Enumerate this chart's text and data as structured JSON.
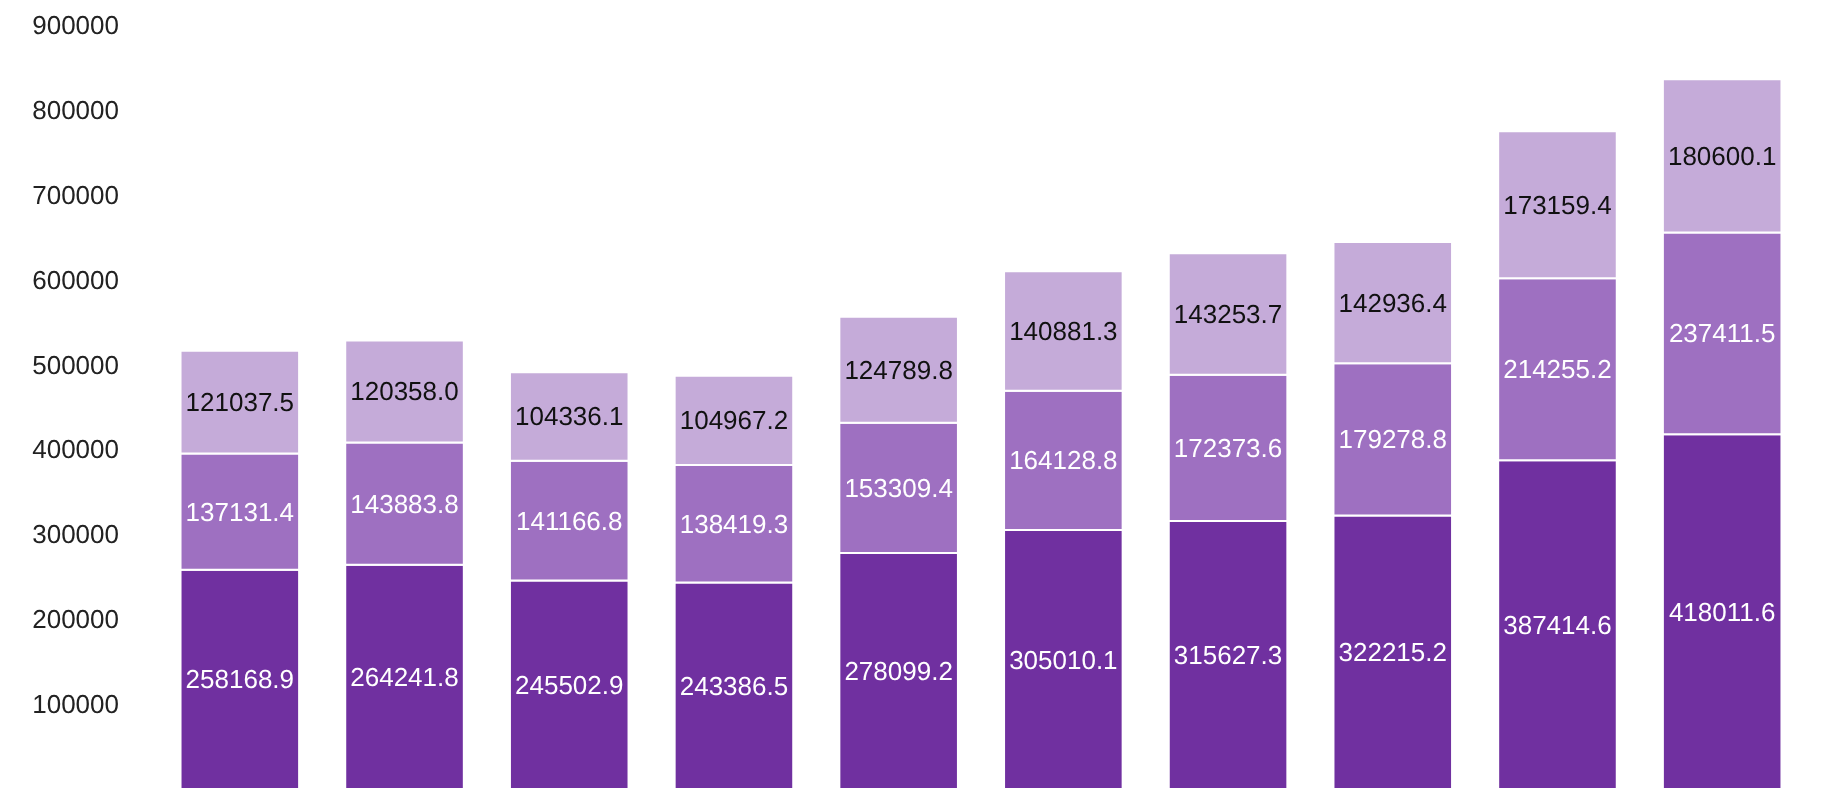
{
  "chart_data": {
    "type": "bar",
    "stacked": true,
    "data_labels": true,
    "grid": false,
    "categories": [
      null,
      null,
      null,
      null,
      null,
      null,
      null,
      null,
      null,
      null
    ],
    "ylim": [
      0,
      900000
    ],
    "yticks": [
      100000,
      200000,
      300000,
      400000,
      500000,
      600000,
      700000,
      800000,
      900000
    ],
    "tick_labels": "y",
    "series": [
      {
        "color": "#7030a0",
        "values": [
          258168.9,
          264241.8,
          245502.9,
          243386.5,
          278099.2,
          305010.1,
          315627.3,
          322215.2,
          387414.6,
          418011.6
        ]
      },
      {
        "color": "#9e70c1",
        "values": [
          137131.4,
          143883.8,
          141166.8,
          138419.3,
          153309.4,
          164128.8,
          172373.6,
          179278.8,
          214255.2,
          237411.5
        ]
      },
      {
        "color": "#c5abd9",
        "values": [
          121037.5,
          120358.0,
          104336.1,
          104967.2,
          124789.8,
          140881.3,
          143253.7,
          142936.4,
          173159.4,
          180600.1
        ],
        "value_labels": [
          "121037.5",
          "120358.0",
          "104336.1",
          "104967.2",
          "124789.8",
          "140881.3",
          "143253.7",
          "142936.4",
          "173159.4",
          "180600.1"
        ]
      }
    ]
  }
}
